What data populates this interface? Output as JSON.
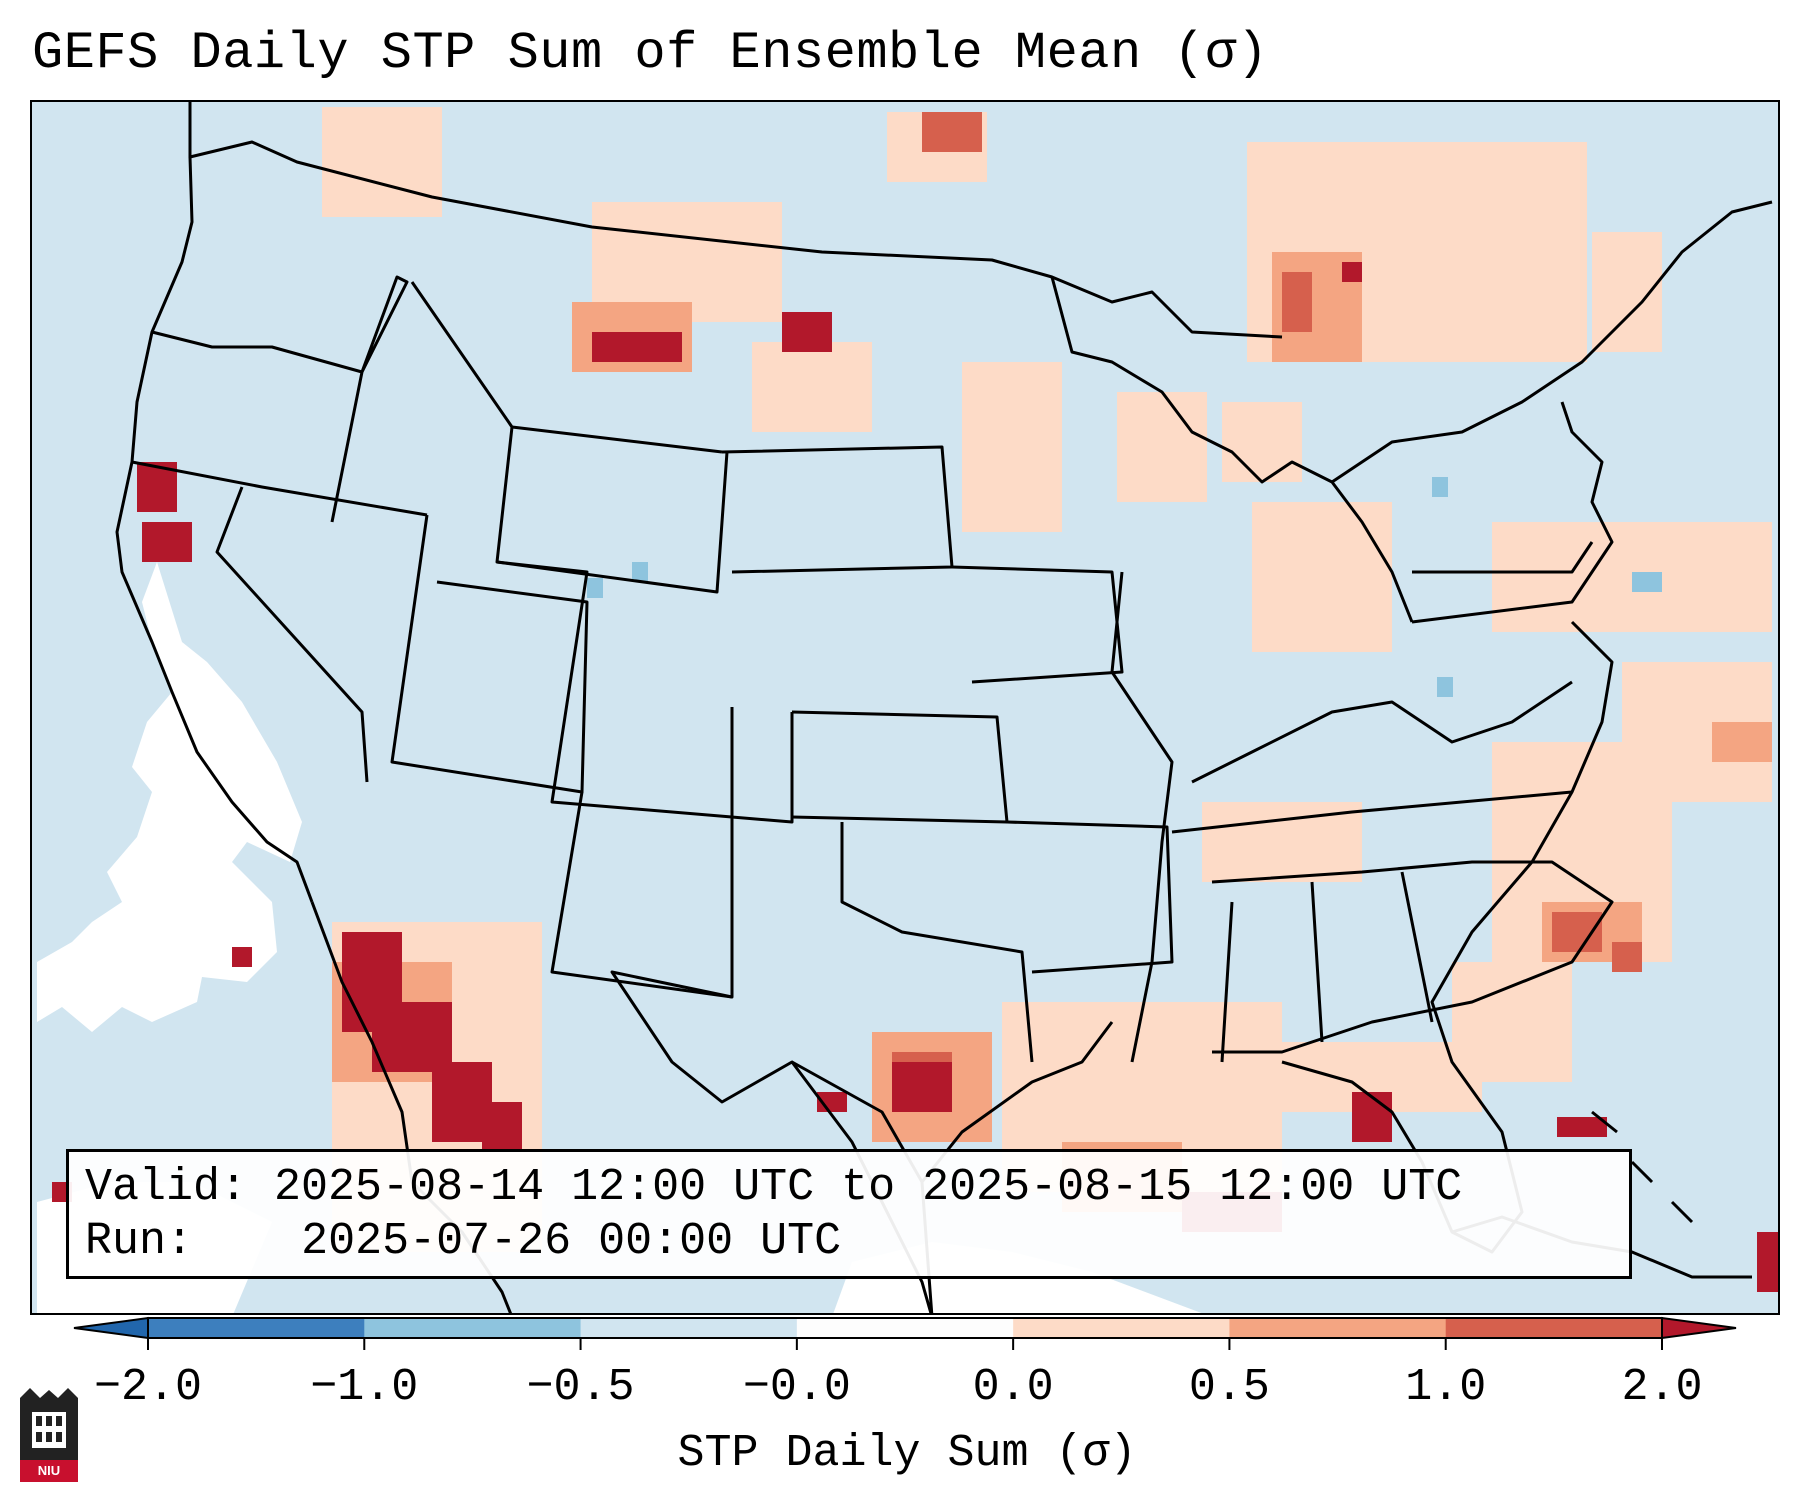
{
  "title": "GEFS Daily STP Sum of Ensemble Mean (σ)",
  "info": {
    "valid_label": "Valid:",
    "valid_value": "2025-08-14 12:00 UTC to 2025-08-15 12:00 UTC",
    "run_label": "Run:",
    "run_value": "2025-07-26 00:00 UTC"
  },
  "colorbar": {
    "label": "STP Daily Sum (σ)",
    "tick_labels": [
      "−2.0",
      "−1.0",
      "−0.5",
      "−0.0",
      "0.0",
      "0.5",
      "1.0",
      "2.0"
    ],
    "bins": [
      {
        "color": "#3d7fbe"
      },
      {
        "color": "#8ec4de"
      },
      {
        "color": "#d1e5f0"
      },
      {
        "color": "#fdfdfd"
      },
      {
        "color": "#fddbc7"
      },
      {
        "color": "#f4a582"
      },
      {
        "color": "#d6604d"
      }
    ],
    "under_color": "#2166ac",
    "over_color": "#b2182b"
  },
  "map": {
    "background_color": "#d1e5f0",
    "neutral_color": "#ffffff",
    "border_color": "#000000",
    "region": "CONUS"
  },
  "logo": {
    "text": "NIU",
    "color": "#c8102e"
  }
}
